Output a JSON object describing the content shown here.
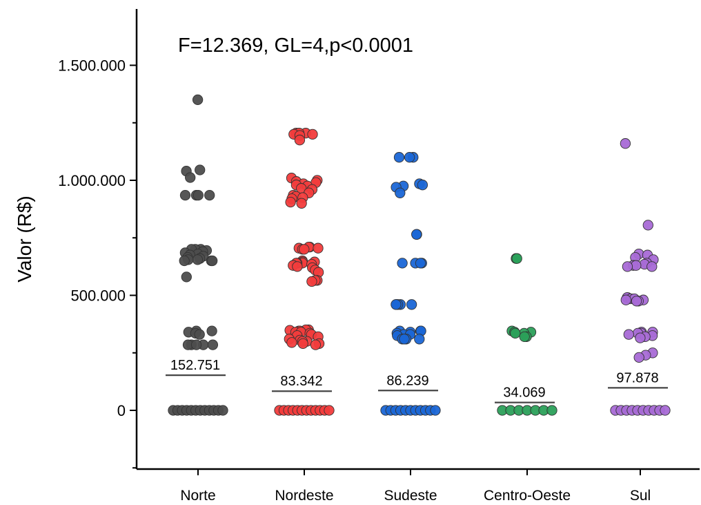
{
  "chart_data": {
    "type": "scatter",
    "annotation": "F=12.369, GL=4,p<0.0001",
    "xlabel": "",
    "ylabel": "Valor (R$)",
    "ylim": [
      -250000,
      1750000
    ],
    "yticks": [
      0,
      500000,
      1000000,
      1500000
    ],
    "ytick_labels": [
      "0",
      "500.000",
      "1.000.000",
      "1.500.000"
    ],
    "grid": false,
    "categories": [
      "Norte",
      "Nordeste",
      "Sudeste",
      "Centro-Oeste",
      "Sul"
    ],
    "series": [
      {
        "category": "Norte",
        "color": "#4d4d4d",
        "mean": 152751,
        "mean_label": "152.751",
        "points": [
          1350000,
          1045000,
          1040000,
          1012000,
          935000,
          935000,
          935000,
          935000,
          700000,
          700000,
          700000,
          695000,
          690000,
          685000,
          680000,
          675000,
          670000,
          665000,
          660000,
          655000,
          655000,
          650000,
          650000,
          650000,
          580000,
          345000,
          345000,
          340000,
          335000,
          330000,
          285000,
          285000,
          285000,
          285000,
          285000,
          0,
          0,
          0,
          0,
          0,
          0,
          0,
          0,
          0,
          0,
          0,
          0
        ]
      },
      {
        "category": "Nordeste",
        "color": "#f23c3c",
        "mean": 83342,
        "mean_label": "83.342",
        "points": [
          1205000,
          1205000,
          1205000,
          1200000,
          1200000,
          1195000,
          1175000,
          1010000,
          1000000,
          995000,
          990000,
          985000,
          980000,
          975000,
          965000,
          960000,
          945000,
          935000,
          930000,
          925000,
          920000,
          905000,
          900000,
          710000,
          710000,
          705000,
          705000,
          700000,
          700000,
          650000,
          645000,
          645000,
          640000,
          640000,
          640000,
          635000,
          630000,
          625000,
          620000,
          610000,
          600000,
          565000,
          565000,
          560000,
          350000,
          350000,
          348000,
          345000,
          345000,
          340000,
          340000,
          335000,
          330000,
          325000,
          320000,
          310000,
          305000,
          300000,
          300000,
          295000,
          290000,
          290000,
          285000,
          0,
          0,
          0,
          0,
          0,
          0,
          0,
          0,
          0,
          0,
          0,
          0
        ]
      },
      {
        "category": "Sudeste",
        "color": "#1a66d6",
        "mean": 86239,
        "mean_label": "86.239",
        "points": [
          1100000,
          1100000,
          1100000,
          985000,
          980000,
          975000,
          970000,
          945000,
          765000,
          765000,
          640000,
          640000,
          640000,
          640000,
          460000,
          460000,
          460000,
          460000,
          460000,
          345000,
          345000,
          345000,
          340000,
          335000,
          330000,
          330000,
          325000,
          310000,
          310000,
          310000,
          310000,
          0,
          0,
          0,
          0,
          0,
          0,
          0,
          0,
          0,
          0,
          0
        ]
      },
      {
        "category": "Centro-Oeste",
        "color": "#2ba05a",
        "mean": 34069,
        "mean_label": "34.069",
        "points": [
          660000,
          660000,
          345000,
          340000,
          340000,
          335000,
          335000,
          320000,
          320000,
          0,
          0,
          0,
          0,
          0,
          0,
          0
        ]
      },
      {
        "category": "Sul",
        "color": "#a86ad6",
        "mean": 97878,
        "mean_label": "97.878",
        "points": [
          1160000,
          805000,
          680000,
          675000,
          665000,
          655000,
          640000,
          635000,
          630000,
          630000,
          625000,
          625000,
          490000,
          490000,
          485000,
          485000,
          480000,
          480000,
          475000,
          475000,
          340000,
          340000,
          335000,
          335000,
          330000,
          325000,
          320000,
          315000,
          250000,
          240000,
          230000,
          0,
          0,
          0,
          0,
          0,
          0,
          0,
          0,
          0,
          0
        ]
      }
    ]
  }
}
